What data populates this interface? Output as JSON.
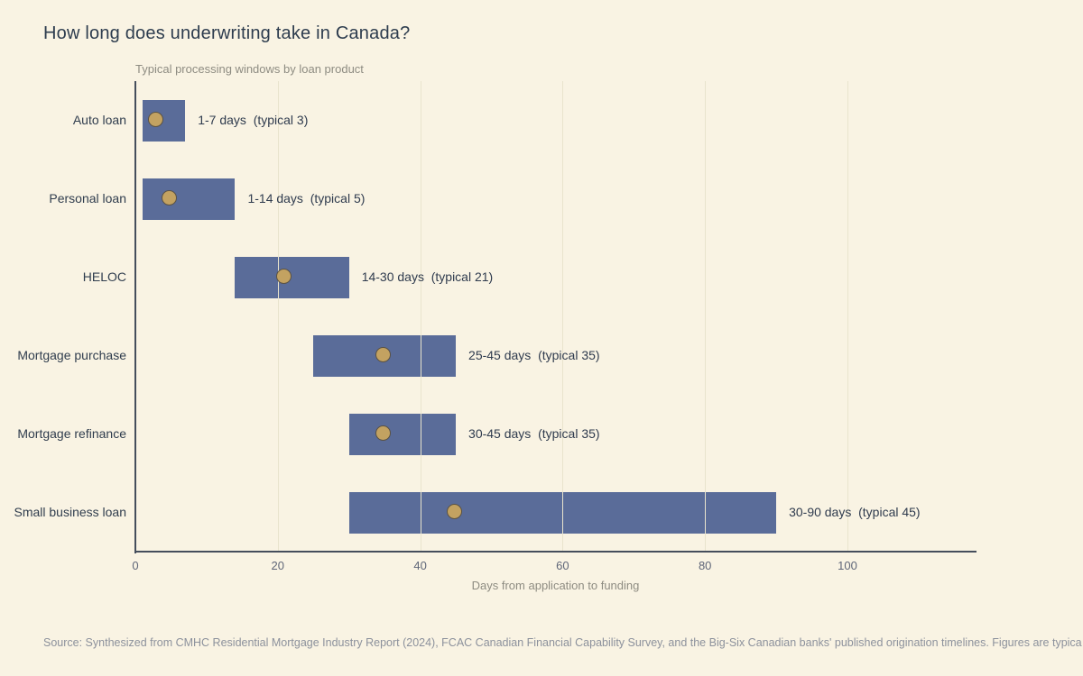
{
  "header": {
    "title": "How long does underwriting take in Canada?",
    "subtitle": "Typical processing windows by loan product"
  },
  "footer": {
    "source": "Source: Synthesized from CMHC Residential Mortgage Industry Report (2024), FCAC Canadian Financial Capability Survey, and the Big-Six Canadian banks' published origination timelines. Figures are typica"
  },
  "chart_data": {
    "type": "bar",
    "orientation": "horizontal-range",
    "title": "How long does underwriting take in Canada?",
    "subtitle": "Typical processing windows by loan product",
    "xlabel": "Days from application to funding",
    "ylabel": "",
    "xlim": [
      0,
      118
    ],
    "xticks": [
      0,
      20,
      40,
      60,
      80,
      100
    ],
    "grid": true,
    "legend": "none",
    "categories": [
      "Auto loan",
      "Personal loan",
      "HELOC",
      "Mortgage purchase",
      "Mortgage refinance",
      "Small business loan"
    ],
    "rows": [
      {
        "label": "Auto loan",
        "start": 1,
        "end": 7,
        "typical": 3,
        "annotation": "1-7 days  (typical 3)"
      },
      {
        "label": "Personal loan",
        "start": 1,
        "end": 14,
        "typical": 5,
        "annotation": "1-14 days  (typical 5)"
      },
      {
        "label": "HELOC",
        "start": 14,
        "end": 30,
        "typical": 21,
        "annotation": "14-30 days  (typical 21)"
      },
      {
        "label": "Mortgage purchase",
        "start": 25,
        "end": 45,
        "typical": 35,
        "annotation": "25-45 days  (typical 35)"
      },
      {
        "label": "Mortgage refinance",
        "start": 30,
        "end": 45,
        "typical": 35,
        "annotation": "30-45 days  (typical 35)"
      },
      {
        "label": "Small business loan",
        "start": 30,
        "end": 90,
        "typical": 45,
        "annotation": "30-90 days  (typical 45)"
      }
    ],
    "colors": {
      "background": "#f9f3e3",
      "bar": "#5a6c99",
      "typical_dot": "#c3a261",
      "dot_border": "#5a5244",
      "axis": "#454e5c",
      "gridline": "#e9e4cd",
      "title_text": "#2d3c4e",
      "muted_text": "#8e8c82",
      "label_text": "#2f3b4e"
    }
  }
}
